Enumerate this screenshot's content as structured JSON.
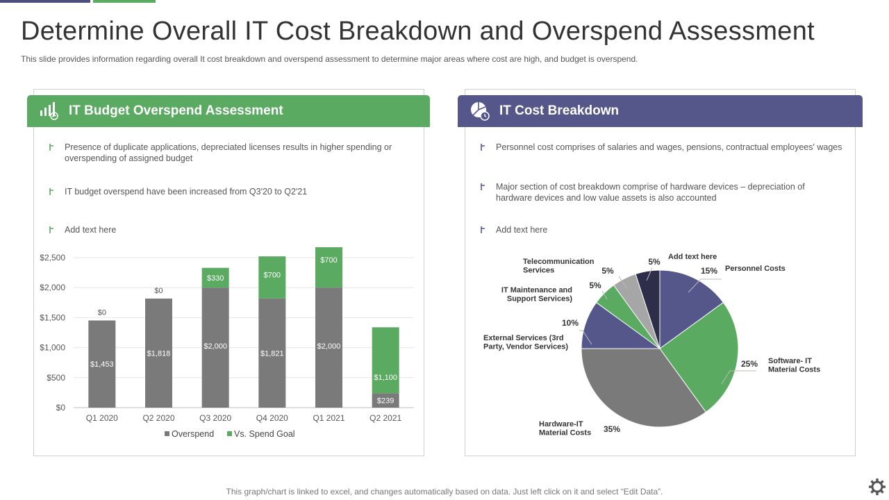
{
  "title": "Determine Overall IT Cost Breakdown and Overspend Assessment",
  "subtitle": "This slide provides  information  regarding  overall  It cost breakdown  and overspend  assessment to determine  major areas where  cost are high,  and budget  is overspend.",
  "left_panel": {
    "heading": "IT Budget Overspend Assessment",
    "bullets": [
      "Presence of duplicate applications, depreciated  licenses results in higher spending or overspending  of assigned budget",
      "IT budget overspend  have been increased from  Q3'20 to Q2'21",
      "Add text here"
    ]
  },
  "right_panel": {
    "heading": "IT Cost Breakdown",
    "bullets": [
      "Personnel cost comprises of salaries and wages, pensions, contractual employees' wages",
      "Major section of cost breakdown  comprise of hardware  devices  – depreciation  of hardware  devices  and low value  assets is also accounted",
      "Add text here"
    ]
  },
  "colors": {
    "green": "#5aaa62",
    "purple": "#55578a",
    "gray": "#7a7a7a",
    "navy": "#2e2e4a",
    "lightgray": "#a6a6a6"
  },
  "footer": "This graph/chart is linked to excel,  and changes automatically based on data. Just left click on it and select “Edit Data”.",
  "chart_data": [
    {
      "type": "bar",
      "stacked": true,
      "categories": [
        "Q1 2020",
        "Q2 2020",
        "Q3 2020",
        "Q4 2020",
        "Q1 2021",
        "Q2 2021"
      ],
      "series": [
        {
          "name": "Overspend",
          "values": [
            1453,
            1818,
            2000,
            1821,
            2000,
            239
          ],
          "labels": [
            "$1,453",
            "$1,818",
            "$2,000",
            "$1,821",
            "$2,000",
            "$239"
          ]
        },
        {
          "name": "Vs. Spend Goal",
          "values": [
            0,
            0,
            330,
            700,
            700,
            1100
          ],
          "labels": [
            "$0",
            "$0",
            "$330",
            "$700",
            "$700",
            "$1,100"
          ]
        }
      ],
      "yticks": [
        "$0",
        "$500",
        "$1,000",
        "$1,500",
        "$2,000",
        "$2,500"
      ],
      "ylim": [
        0,
        2500
      ],
      "legend": "bottom"
    },
    {
      "type": "pie",
      "slices": [
        {
          "label": "Personnel Costs",
          "value": 15,
          "pct": "15%",
          "color": "#55578a"
        },
        {
          "label": "Software- IT Material Costs",
          "value": 25,
          "pct": "25%",
          "color": "#5aaa62"
        },
        {
          "label": "Hardware-IT Material Costs",
          "value": 35,
          "pct": "35%",
          "color": "#7a7a7a"
        },
        {
          "label": "External Services (3rd Party, Vendor Services)",
          "value": 10,
          "pct": "10%",
          "color": "#55578a"
        },
        {
          "label": "IT Maintenance and Support Services)",
          "value": 5,
          "pct": "5%",
          "color": "#5aaa62"
        },
        {
          "label": "Telecommunication Services",
          "value": 5,
          "pct": "5%",
          "color": "#a6a6a6"
        },
        {
          "label": "Add text here",
          "value": 5,
          "pct": "5%",
          "color": "#2e2e4a"
        }
      ]
    }
  ]
}
